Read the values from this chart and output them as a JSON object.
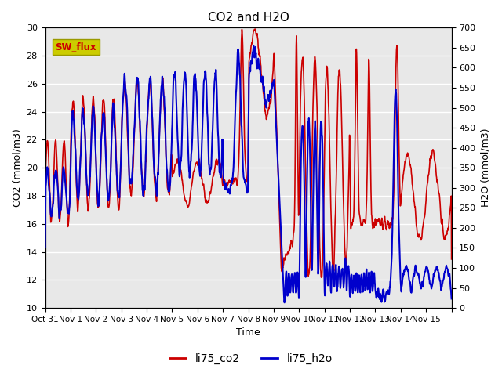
{
  "title": "CO2 and H2O",
  "xlabel": "Time",
  "ylabel_left": "CO2 (mmol/m3)",
  "ylabel_right": "H2O (mmol/m3)",
  "ylim_left": [
    10,
    30
  ],
  "ylim_right": [
    0,
    700
  ],
  "yticks_left": [
    10,
    12,
    14,
    16,
    18,
    20,
    22,
    24,
    26,
    28,
    30
  ],
  "yticks_right": [
    0,
    50,
    100,
    150,
    200,
    250,
    300,
    350,
    400,
    450,
    500,
    550,
    600,
    650,
    700
  ],
  "color_co2": "#cc0000",
  "color_h2o": "#0000cc",
  "bg_color": "#e8e8e8",
  "legend_label_co2": "li75_co2",
  "legend_label_h2o": "li75_h2o",
  "sw_flux_label": "SW_flux",
  "sw_flux_bg": "#cccc00",
  "sw_flux_fg": "#cc0000",
  "xtick_positions": [
    0,
    1,
    2,
    3,
    4,
    5,
    6,
    7,
    8,
    9,
    10,
    11,
    12,
    13,
    14,
    15,
    16
  ],
  "xtick_labels": [
    "Oct 31",
    "Nov 1",
    "Nov 2",
    "Nov 3",
    "Nov 4",
    "Nov 5",
    "Nov 6",
    "Nov 7",
    "Nov 8",
    "Nov 9",
    "Nov 10",
    "Nov 11",
    "Nov 12",
    "Nov 13",
    "Nov 14",
    "Nov 15",
    ""
  ],
  "lw_co2": 1.2,
  "lw_h2o": 1.5
}
